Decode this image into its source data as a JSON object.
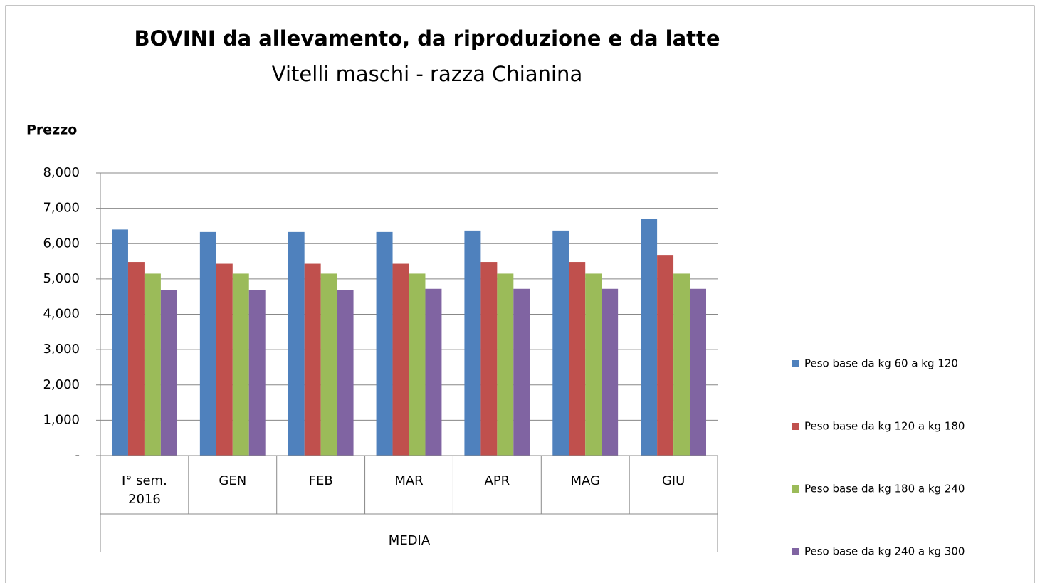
{
  "chart_data": {
    "type": "bar",
    "title": "BOVINI da allevamento, da riproduzione  e da latte",
    "subtitle": "Vitelli maschi - razza Chianina",
    "y_label": "Prezzo",
    "category_group": "MEDIA",
    "categories": [
      "I° sem. 2016",
      "GEN",
      "FEB",
      "MAR",
      "APR",
      "MAG",
      "GIU"
    ],
    "series": [
      {
        "name": "Peso base da kg 60 a kg 120",
        "color": "#4f81bd",
        "values": [
          6400,
          6330,
          6330,
          6330,
          6370,
          6370,
          6700
        ]
      },
      {
        "name": "Peso base da kg 120 a kg 180",
        "color": "#c0504d",
        "values": [
          5480,
          5430,
          5430,
          5430,
          5480,
          5480,
          5680
        ]
      },
      {
        "name": "Peso base da kg 180 a kg 240",
        "color": "#9bbb59",
        "values": [
          5150,
          5150,
          5150,
          5150,
          5150,
          5150,
          5150
        ]
      },
      {
        "name": "Peso base da kg 240 a kg 300",
        "color": "#8064a2",
        "values": [
          4680,
          4680,
          4680,
          4720,
          4720,
          4720,
          4720
        ]
      }
    ],
    "ylim": [
      0,
      8000
    ],
    "yticks": [
      {
        "value": 0,
        "label": "-"
      },
      {
        "value": 1000,
        "label": "1,000"
      },
      {
        "value": 2000,
        "label": "2,000"
      },
      {
        "value": 3000,
        "label": "3,000"
      },
      {
        "value": 4000,
        "label": "4,000"
      },
      {
        "value": 5000,
        "label": "5,000"
      },
      {
        "value": 6000,
        "label": "6,000"
      },
      {
        "value": 7000,
        "label": "7,000"
      },
      {
        "value": 8000,
        "label": "8,000"
      }
    ],
    "grid": true,
    "legend": "right"
  }
}
